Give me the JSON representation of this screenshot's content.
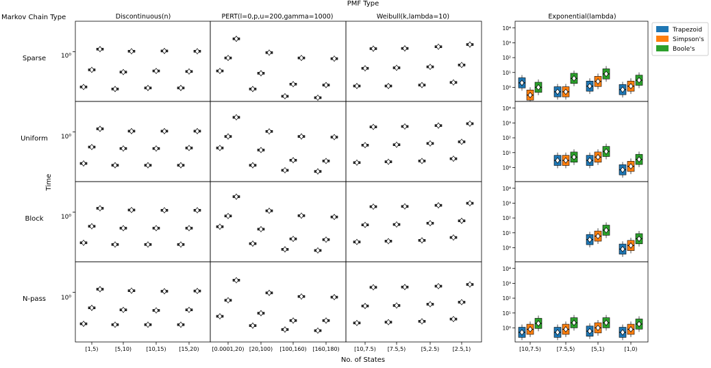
{
  "figure": {
    "title": "PMF Type",
    "row_axis_label": "Markov Chain Type",
    "xlabel": "No. of States",
    "ylabel": "Time",
    "log_tick_label": "10⁰",
    "rows": [
      "Sparse",
      "Uniform",
      "Block",
      "N-pass"
    ],
    "colors": {
      "trapezoid": "#1f77b4",
      "simpson": "#ff7f0e",
      "boole": "#2ca02c"
    }
  },
  "legend": {
    "entries": [
      {
        "label": "Trapezoid",
        "color": "#1f77b4"
      },
      {
        "label": "Simpson's",
        "color": "#ff7f0e"
      },
      {
        "label": "Boole's",
        "color": "#2ca02c"
      }
    ]
  },
  "chart_data": {
    "type": "box",
    "description_scale": "log",
    "series_names": [
      "Trapezoid",
      "Simpson's",
      "Boole's"
    ],
    "columns": [
      {
        "title": "Discontinuous(n)",
        "categories": [
          "[1,5)",
          "[5,10)",
          "[10,15)",
          "[15,20)"
        ],
        "medians": {
          "Sparse": [
            [
              0.28,
              0.52,
              1.1
            ],
            [
              0.26,
              0.48,
              1.02
            ],
            [
              0.27,
              0.5,
              1.03
            ],
            [
              0.27,
              0.49,
              1.02
            ]
          ],
          "Uniform": [
            [
              0.32,
              0.58,
              1.12
            ],
            [
              0.3,
              0.55,
              1.03
            ],
            [
              0.3,
              0.55,
              1.03
            ],
            [
              0.3,
              0.56,
              1.03
            ]
          ],
          "Block": [
            [
              0.33,
              0.6,
              1.15
            ],
            [
              0.31,
              0.56,
              1.08
            ],
            [
              0.31,
              0.56,
              1.07
            ],
            [
              0.31,
              0.56,
              1.07
            ]
          ],
          "N-pass": [
            [
              0.32,
              0.57,
              1.12
            ],
            [
              0.31,
              0.53,
              1.06
            ],
            [
              0.31,
              0.52,
              1.04
            ],
            [
              0.31,
              0.53,
              1.05
            ]
          ]
        }
      },
      {
        "title": "PERT(l=0,p,u=200,gamma=1000)",
        "categories": [
          "[0.0001,20)",
          "[20,100)",
          "[100,160)",
          "[160,180)"
        ],
        "medians": {
          "Sparse": [
            [
              0.5,
              0.8,
              1.6
            ],
            [
              0.26,
              0.46,
              0.97
            ],
            [
              0.2,
              0.31,
              0.8
            ],
            [
              0.19,
              0.3,
              0.78
            ]
          ],
          "Uniform": [
            [
              0.56,
              0.85,
              1.7
            ],
            [
              0.3,
              0.52,
              1.02
            ],
            [
              0.25,
              0.36,
              0.85
            ],
            [
              0.24,
              0.35,
              0.83
            ]
          ],
          "Block": [
            [
              0.59,
              0.87,
              1.75
            ],
            [
              0.32,
              0.54,
              1.05
            ],
            [
              0.26,
              0.38,
              0.88
            ],
            [
              0.25,
              0.37,
              0.84
            ]
          ],
          "N-pass": [
            [
              0.42,
              0.75,
              1.55
            ],
            [
              0.3,
              0.47,
              0.98
            ],
            [
              0.26,
              0.36,
              0.86
            ],
            [
              0.25,
              0.36,
              0.84
            ]
          ]
        }
      },
      {
        "title": "Weibull(k,lambda=10)",
        "categories": [
          "[10,7.5)",
          "[7.5,5)",
          "[5,2.5)",
          "[2.5,1)"
        ],
        "medians": {
          "Sparse": [
            [
              0.29,
              0.55,
              1.12
            ],
            [
              0.29,
              0.56,
              1.13
            ],
            [
              0.3,
              0.58,
              1.2
            ],
            [
              0.33,
              0.62,
              1.3
            ]
          ],
          "Uniform": [
            [
              0.33,
              0.62,
              1.2
            ],
            [
              0.34,
              0.63,
              1.22
            ],
            [
              0.35,
              0.66,
              1.26
            ],
            [
              0.38,
              0.7,
              1.35
            ]
          ],
          "Block": [
            [
              0.34,
              0.63,
              1.22
            ],
            [
              0.35,
              0.64,
              1.23
            ],
            [
              0.36,
              0.67,
              1.28
            ],
            [
              0.4,
              0.73,
              1.38
            ]
          ],
          "N-pass": [
            [
              0.33,
              0.61,
              1.2
            ],
            [
              0.34,
              0.62,
              1.21
            ],
            [
              0.35,
              0.65,
              1.25
            ],
            [
              0.38,
              0.7,
              1.33
            ]
          ]
        }
      },
      {
        "title": "Exponential(lambda)",
        "categories": [
          "[10,7.5)",
          "[7.5,5)",
          "[5,1)",
          "[1,0)"
        ],
        "yticks": [
          "10⁰",
          "10¹",
          "10²",
          "10³",
          "10⁴"
        ],
        "medians": {
          "Sparse": [
            [
              2.0,
              0.3,
              1.0
            ],
            [
              0.5,
              0.5,
              4.0
            ],
            [
              1.2,
              2.5,
              8.0
            ],
            [
              0.7,
              1.2,
              3.0
            ]
          ],
          "Uniform": [
            [
              null,
              null,
              null
            ],
            [
              3.0,
              3.0,
              5.0
            ],
            [
              3.0,
              5.0,
              12.0
            ],
            [
              0.7,
              1.2,
              3.5
            ]
          ],
          "Block": [
            [
              null,
              null,
              null
            ],
            [
              null,
              null,
              null
            ],
            [
              3.5,
              6.0,
              15.0
            ],
            [
              0.8,
              1.4,
              4.0
            ]
          ],
          "N-pass": [
            [
              0.5,
              0.8,
              2.0
            ],
            [
              0.5,
              0.8,
              2.2
            ],
            [
              0.6,
              1.0,
              2.2
            ],
            [
              0.5,
              0.8,
              1.8
            ]
          ]
        }
      }
    ]
  }
}
